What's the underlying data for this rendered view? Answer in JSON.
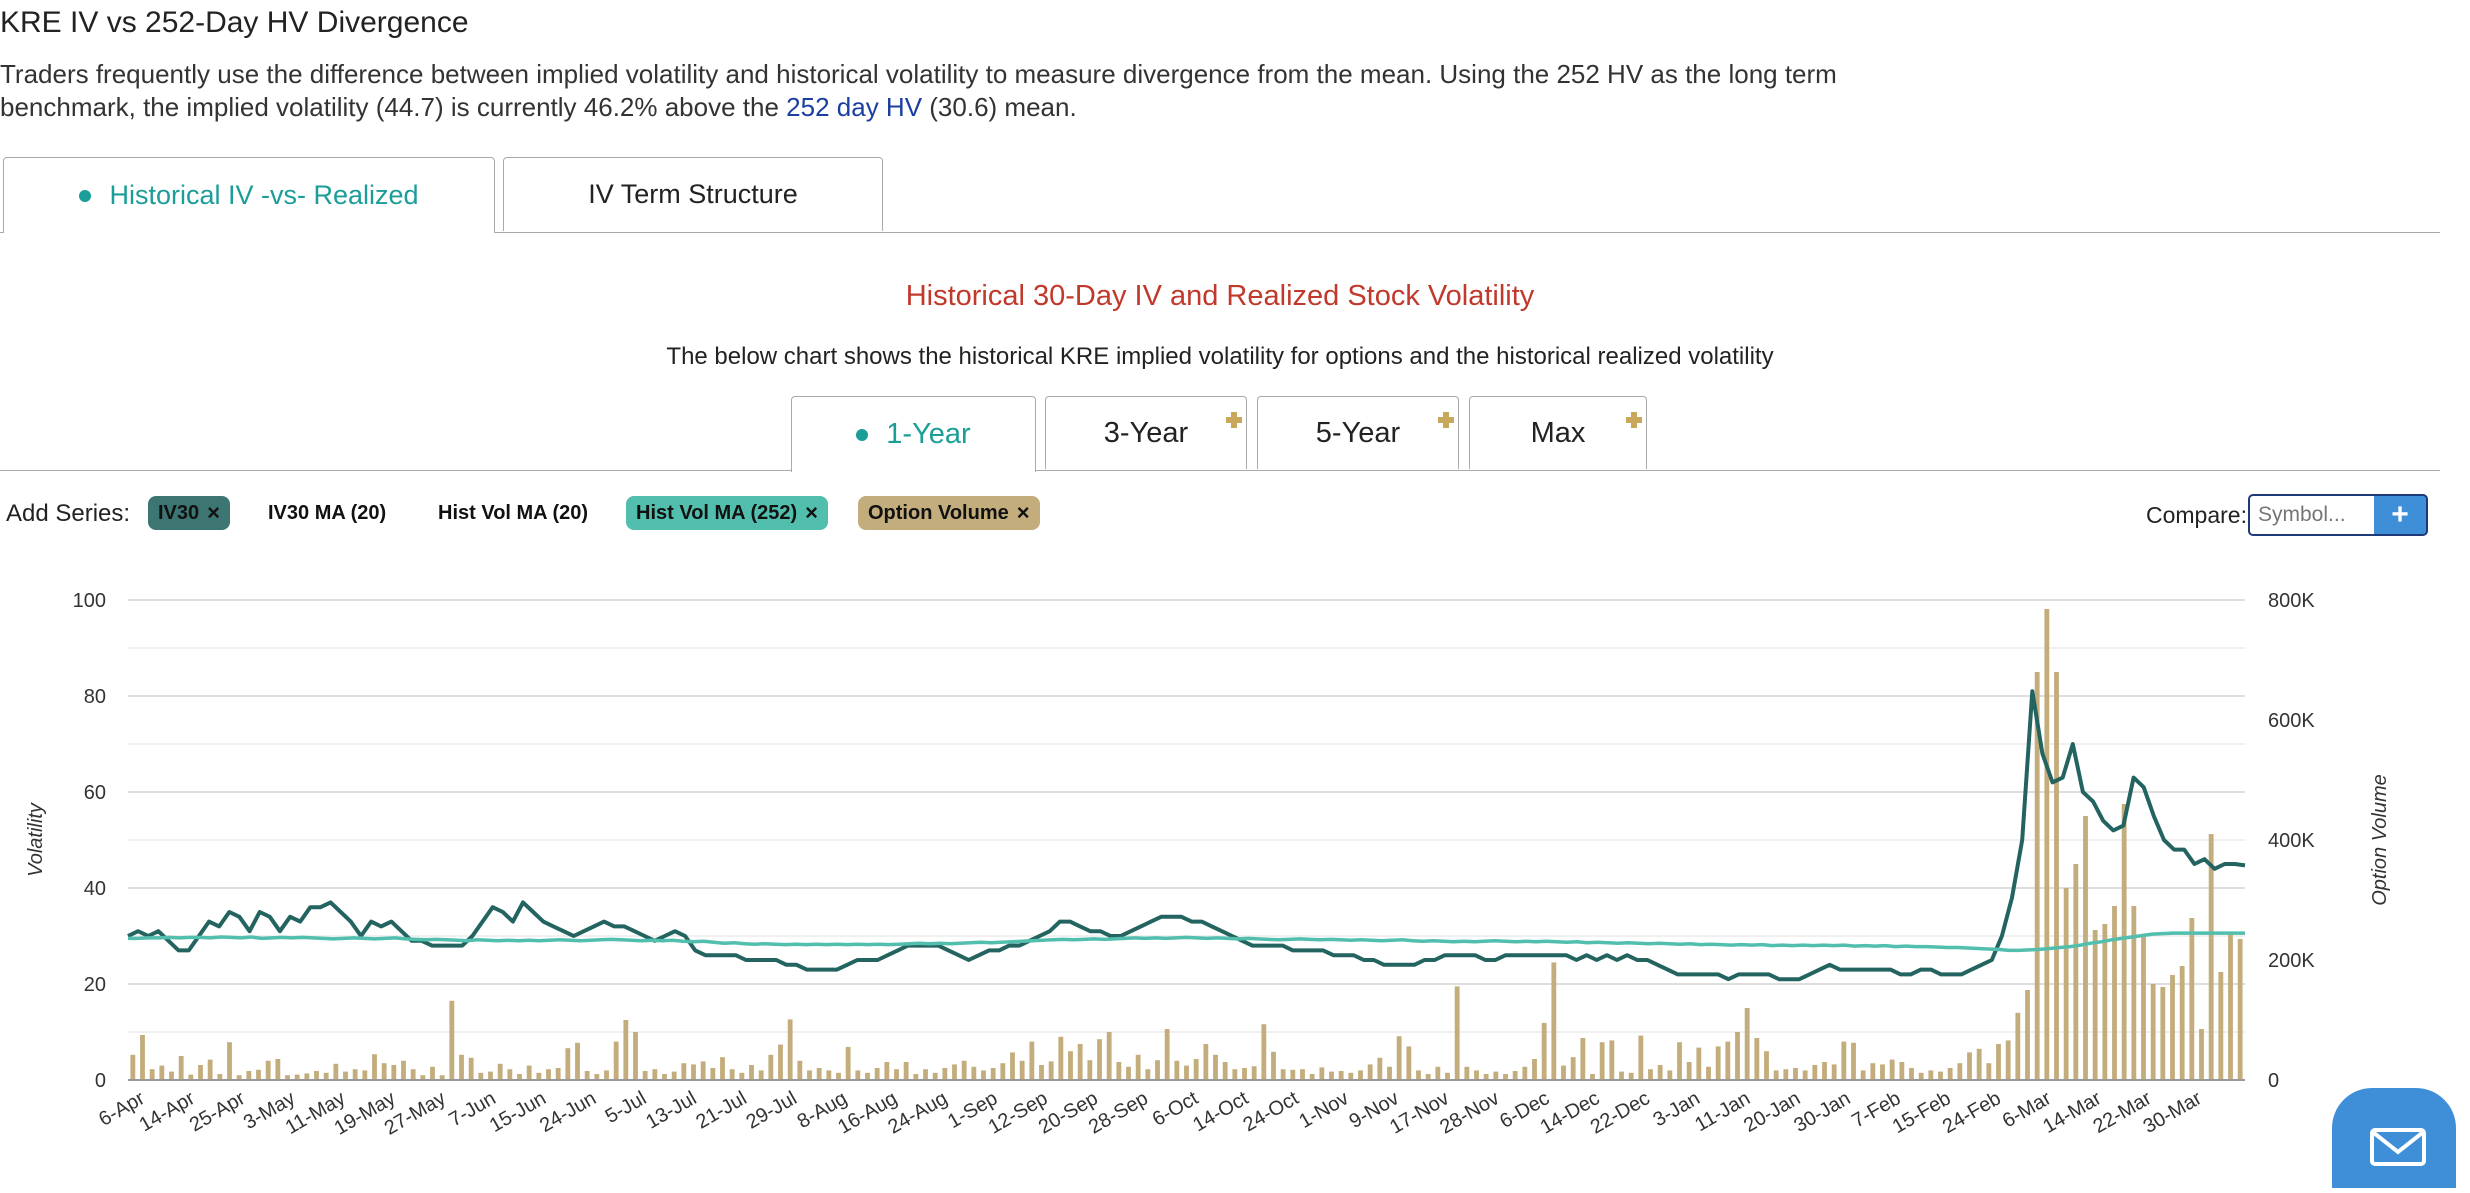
{
  "header": {
    "title": "KRE IV vs 252-Day HV Divergence",
    "desc_part1": "Traders frequently use the difference between implied volatility and historical volatility to measure divergence from the mean. Using the 252 HV as the long term benchmark, the implied volatility (44.7) is currently 46.2% above the ",
    "desc_link": "252 day HV",
    "desc_part2": " (30.6) mean."
  },
  "main_tabs": [
    {
      "label": "Historical IV -vs- Realized",
      "active": true
    },
    {
      "label": "IV Term Structure",
      "active": false
    }
  ],
  "chart_header": {
    "title": "Historical 30-Day IV and Realized Stock Volatility",
    "subtitle": "The below chart shows the historical KRE implied volatility for options and the historical realized volatility"
  },
  "range_tabs": [
    {
      "label": "1-Year",
      "active": true
    },
    {
      "label": "3-Year",
      "active": false
    },
    {
      "label": "5-Year",
      "active": false
    },
    {
      "label": "Max",
      "active": false
    }
  ],
  "series_bar": {
    "add_label": "Add Series:",
    "chips": [
      {
        "label": "IV30",
        "active": true,
        "bg": "#3d7572",
        "fg": "#111111"
      },
      {
        "label": "IV30 MA (20)",
        "active": false,
        "bg": "",
        "fg": "#111111"
      },
      {
        "label": "Hist Vol MA (20)",
        "active": false,
        "bg": "",
        "fg": "#111111"
      },
      {
        "label": "Hist Vol MA (252)",
        "active": true,
        "bg": "#52bfae",
        "fg": "#111111"
      },
      {
        "label": "Option Volume",
        "active": true,
        "bg": "#c4ad7c",
        "fg": "#111111"
      }
    ],
    "remove_symbol": "×",
    "compare_label": "Compare:",
    "compare_placeholder": "Symbol...",
    "compare_button": "+"
  },
  "chart_data": {
    "type": "line",
    "xlabel": "",
    "ylabel": "Volatility",
    "y2label": "Option Volume",
    "ylim": [
      0,
      100
    ],
    "y2lim": [
      0,
      800000
    ],
    "yticks": [
      "0",
      "20",
      "40",
      "60",
      "80",
      "100"
    ],
    "y2ticks": [
      "0",
      "200K",
      "400K",
      "600K",
      "800K"
    ],
    "grid": true,
    "x_tick_labels": [
      "6-Apr",
      "14-Apr",
      "25-Apr",
      "3-May",
      "11-May",
      "19-May",
      "27-May",
      "7-Jun",
      "15-Jun",
      "24-Jun",
      "5-Jul",
      "13-Jul",
      "21-Jul",
      "29-Jul",
      "8-Aug",
      "16-Aug",
      "24-Aug",
      "1-Sep",
      "12-Sep",
      "20-Sep",
      "28-Sep",
      "6-Oct",
      "14-Oct",
      "24-Oct",
      "1-Nov",
      "9-Nov",
      "17-Nov",
      "28-Nov",
      "6-Dec",
      "14-Dec",
      "22-Dec",
      "3-Jan",
      "11-Jan",
      "20-Jan",
      "30-Jan",
      "7-Feb",
      "15-Feb",
      "24-Feb",
      "6-Mar",
      "14-Mar",
      "22-Mar",
      "30-Mar"
    ],
    "series": [
      {
        "name": "IV30",
        "color": "#236460",
        "axis": "left",
        "values": [
          30,
          31,
          30,
          31,
          29,
          27,
          27,
          30,
          33,
          32,
          35,
          34,
          31,
          35,
          34,
          31,
          34,
          33,
          36,
          36,
          37,
          35,
          33,
          30,
          33,
          32,
          33,
          31,
          29,
          29,
          28,
          28,
          28,
          28,
          30,
          33,
          36,
          35,
          33,
          37,
          35,
          33,
          32,
          31,
          30,
          31,
          32,
          33,
          32,
          32,
          31,
          30,
          29,
          30,
          31,
          30,
          27,
          26,
          26,
          26,
          26,
          25,
          25,
          25,
          25,
          24,
          24,
          23,
          23,
          23,
          23,
          24,
          25,
          25,
          25,
          26,
          27,
          28,
          28,
          28,
          28,
          27,
          26,
          25,
          26,
          27,
          27,
          28,
          28,
          29,
          30,
          31,
          33,
          33,
          32,
          31,
          31,
          30,
          30,
          31,
          32,
          33,
          34,
          34,
          34,
          33,
          33,
          32,
          31,
          30,
          29,
          28,
          28,
          28,
          28,
          27,
          27,
          27,
          27,
          26,
          26,
          26,
          25,
          25,
          24,
          24,
          24,
          24,
          25,
          25,
          26,
          26,
          26,
          26,
          25,
          25,
          26,
          26,
          26,
          26,
          26,
          26,
          26,
          25,
          26,
          25,
          26,
          25,
          26,
          25,
          25,
          24,
          23,
          22,
          22,
          22,
          22,
          22,
          21,
          22,
          22,
          22,
          22,
          21,
          21,
          21,
          22,
          23,
          24,
          23,
          23,
          23,
          23,
          23,
          23,
          22,
          22,
          23,
          23,
          22,
          22,
          22,
          23,
          24,
          25,
          30,
          38,
          50,
          81,
          68,
          62,
          63,
          70,
          60,
          58,
          54,
          52,
          53,
          63,
          61,
          55,
          50,
          48,
          48,
          45,
          46,
          44,
          45,
          45,
          44.7
        ]
      },
      {
        "name": "Hist Vol MA (252)",
        "color": "#52bfae",
        "axis": "left",
        "values": [
          29.5,
          29.5,
          29.6,
          29.6,
          29.7,
          29.6,
          29.7,
          29.7,
          29.6,
          29.8,
          29.7,
          29.6,
          29.8,
          29.5,
          29.6,
          29.7,
          29.6,
          29.7,
          29.6,
          29.5,
          29.4,
          29.5,
          29.6,
          29.5,
          29.4,
          29.5,
          29.6,
          29.4,
          29.3,
          29.2,
          29.3,
          29.2,
          29.1,
          29.0,
          29.2,
          29.1,
          29.0,
          29.1,
          29.0,
          29.1,
          29.0,
          29.1,
          29.2,
          29.1,
          29.0,
          29.1,
          29.2,
          29.3,
          29.2,
          29.1,
          29.0,
          29.1,
          29.0,
          29.1,
          28.9,
          28.8,
          28.9,
          28.7,
          28.5,
          28.6,
          28.4,
          28.3,
          28.4,
          28.3,
          28.2,
          28.3,
          28.2,
          28.3,
          28.2,
          28.3,
          28.2,
          28.3,
          28.2,
          28.3,
          28.2,
          28.3,
          28.4,
          28.5,
          28.4,
          28.5,
          28.4,
          28.5,
          28.6,
          28.7,
          28.6,
          28.7,
          28.8,
          28.9,
          29.0,
          29.1,
          29.2,
          29.3,
          29.2,
          29.3,
          29.4,
          29.3,
          29.4,
          29.5,
          29.6,
          29.5,
          29.6,
          29.5,
          29.6,
          29.7,
          29.6,
          29.5,
          29.6,
          29.5,
          29.4,
          29.5,
          29.4,
          29.3,
          29.2,
          29.3,
          29.4,
          29.3,
          29.2,
          29.3,
          29.2,
          29.1,
          29.2,
          29.1,
          29.0,
          29.1,
          29.2,
          29.0,
          28.9,
          29.0,
          28.9,
          28.8,
          28.9,
          28.8,
          28.9,
          29.0,
          28.9,
          28.8,
          28.9,
          28.8,
          28.9,
          28.8,
          28.7,
          28.8,
          28.6,
          28.7,
          28.6,
          28.5,
          28.6,
          28.5,
          28.4,
          28.5,
          28.4,
          28.3,
          28.4,
          28.2,
          28.3,
          28.2,
          28.1,
          28.2,
          28.1,
          28.2,
          28.0,
          28.1,
          28.0,
          28.1,
          28.0,
          28.1,
          28.0,
          28.1,
          27.9,
          28.0,
          27.9,
          28.0,
          27.8,
          27.9,
          27.8,
          27.8,
          27.7,
          27.6,
          27.6,
          27.5,
          27.4,
          27.3,
          27.2,
          27.0,
          27.0,
          27.1,
          27.2,
          27.4,
          27.6,
          27.8,
          28.1,
          28.5,
          28.8,
          29.2,
          29.5,
          29.8,
          30.1,
          30.4,
          30.5,
          30.6,
          30.6,
          30.6,
          30.6,
          30.6,
          30.6,
          30.6,
          30.6
        ]
      },
      {
        "name": "Option Volume",
        "color": "#c4ad7c",
        "axis": "right",
        "type": "bar",
        "values": [
          42000,
          75000,
          18000,
          24000,
          14000,
          40000,
          9000,
          25000,
          34000,
          10000,
          63000,
          8000,
          15000,
          17000,
          32000,
          35000,
          8000,
          9000,
          11000,
          15000,
          12000,
          27000,
          14000,
          18000,
          16000,
          43000,
          28000,
          25000,
          32000,
          18000,
          8000,
          22000,
          8000,
          132000,
          42000,
          37000,
          12000,
          14000,
          27000,
          18000,
          10000,
          24000,
          12000,
          18000,
          20000,
          53000,
          62000,
          15000,
          10000,
          16000,
          64000,
          100000,
          80000,
          15000,
          18000,
          10000,
          14000,
          28000,
          26000,
          31000,
          20000,
          38000,
          18000,
          12000,
          25000,
          16000,
          42000,
          59000,
          101000,
          32000,
          16000,
          20000,
          16000,
          12000,
          55000,
          16000,
          12000,
          20000,
          30000,
          18000,
          30000,
          10000,
          18000,
          12000,
          20000,
          26000,
          32000,
          22000,
          16000,
          20000,
          28000,
          46000,
          32000,
          64000,
          25000,
          31000,
          72000,
          48000,
          60000,
          33000,
          68000,
          80000,
          30000,
          22000,
          42000,
          18000,
          33000,
          85000,
          32000,
          24000,
          35000,
          60000,
          42000,
          30000,
          18000,
          20000,
          23000,
          93000,
          47000,
          18000,
          17000,
          18000,
          10000,
          21000,
          14000,
          15000,
          12000,
          16000,
          26000,
          37000,
          22000,
          73000,
          56000,
          16000,
          10000,
          22000,
          12000,
          156000,
          22000,
          16000,
          10000,
          14000,
          10000,
          15000,
          22000,
          35000,
          95000,
          196000,
          24000,
          38000,
          70000,
          10000,
          63000,
          66000,
          14000,
          12000,
          74000,
          18000,
          25000,
          16000,
          63000,
          30000,
          54000,
          22000,
          56000,
          64000,
          80000,
          120000,
          70000,
          48000,
          16000,
          18000,
          20000,
          16000,
          25000,
          30000,
          26000,
          64000,
          62000,
          16000,
          28000,
          26000,
          34000,
          30000,
          20000,
          12000,
          16000,
          14000,
          20000,
          28000,
          46000,
          52000,
          28000,
          60000,
          66000,
          112000,
          150000,
          680000,
          785000,
          680000,
          320000,
          360000,
          440000,
          250000,
          260000,
          290000,
          460000,
          290000,
          240000,
          160000,
          155000,
          175000,
          190000,
          270000,
          85000,
          410000,
          180000,
          245000,
          235000
        ]
      }
    ]
  }
}
